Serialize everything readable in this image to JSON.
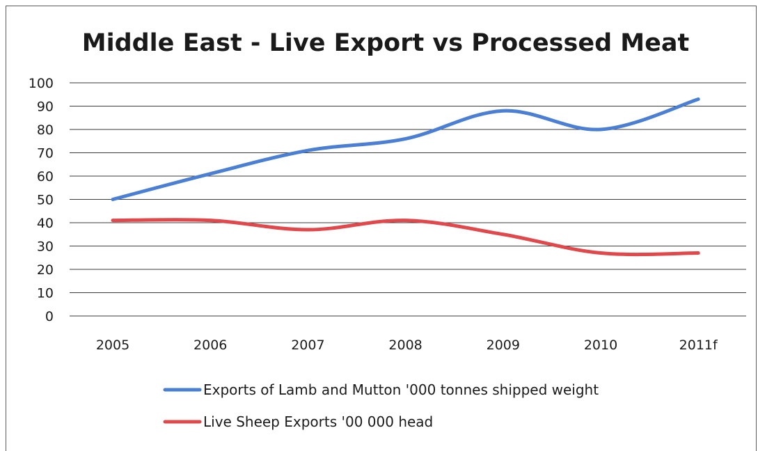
{
  "chart_data": {
    "type": "line",
    "title": "Middle East - Live Export vs Processed Meat",
    "xlabel": "",
    "ylabel": "",
    "categories": [
      "2005",
      "2006",
      "2007",
      "2008",
      "2009",
      "2010",
      "2011f"
    ],
    "ylim": [
      0,
      100
    ],
    "yticks": [
      0,
      10,
      20,
      30,
      40,
      50,
      60,
      70,
      80,
      90,
      100
    ],
    "grid": true,
    "smooth": true,
    "legend_position": "bottom",
    "series": [
      {
        "name": "Exports of Lamb and Mutton '000 tonnes shipped weight",
        "color": "#4a7fd4",
        "values": [
          50,
          61,
          71,
          76,
          88,
          80,
          93
        ]
      },
      {
        "name": "Live Sheep Exports '00 000 head",
        "color": "#e0484b",
        "values": [
          41,
          41,
          37,
          41,
          35,
          27,
          27
        ]
      }
    ]
  }
}
